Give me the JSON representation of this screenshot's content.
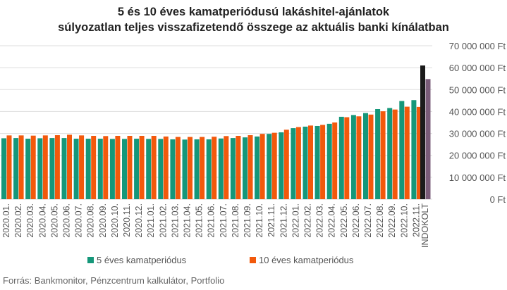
{
  "title": {
    "line1": "5 és 10 éves kamatperiódusú lakáshitel-ajánlatok",
    "line2": "súlyozatlan teljes visszafizetendő összege az aktuális banki kínálatban"
  },
  "source": "Forrás: Bankmonitor, Pénzcentrum kalkulátor, Portfolio",
  "colors": {
    "five": "#15977a",
    "ten": "#f2590c",
    "indokolt_a": "#1b1b1b",
    "indokolt_b": "#7a5c79",
    "grid": "#dddddd"
  },
  "chart_data": {
    "type": "bar",
    "title": "5 és 10 éves kamatperiódusú lakáshitel-ajánlatok súlyozatlan teljes visszafizetendő összege az aktuális banki kínálatban",
    "categories": [
      "2020.01.",
      "2020.02.",
      "2020.03.",
      "2020.04.",
      "2020.05.",
      "2020.06.",
      "2020.07.",
      "2020.08.",
      "2020.09.",
      "2020.10.",
      "2020.11.",
      "2020.12.",
      "2021.01.",
      "2021.02.",
      "2021.03.",
      "2021.04.",
      "2021.05.",
      "2021.06.",
      "2021.07.",
      "2021.08.",
      "2021.09.",
      "2021.10.",
      "2021.11.",
      "2021.12.",
      "2022.01.",
      "2022.02.",
      "2022.03.",
      "2022.04.",
      "2022.05.",
      "2022.06.",
      "2022.07.",
      "2022.08.",
      "2022.09.",
      "2022.10.",
      "2022.11.",
      "INDOKOLT"
    ],
    "tick_labels": [
      "2020.01.",
      "2020.02.",
      "2020.03.",
      "2020.04.",
      "2020.05.",
      "2020.06.",
      "2020.07.",
      "2020.08.",
      "2020.09.",
      "2020.10.",
      "2020.11.",
      "2020.12.",
      "2021.01.",
      "2021.02.",
      "2021.03.",
      "2021.04.",
      "2021.05.",
      "2021.06.",
      "2021.07.",
      "2021.08.",
      "2021.09.",
      "2021.10.",
      "2021.11.",
      "2021.12.",
      "2022.01.",
      "2022.02.",
      "2022.03.",
      "2022.04.",
      "2022.05.",
      "2022.06.",
      "2022.07.",
      "2022.08.",
      "2022.09.",
      "2022.10.",
      "2022.11.",
      "INDOKOLT"
    ],
    "series": [
      {
        "name": "5 éves kamatperiódus",
        "color": "#15977a",
        "values": [
          27.8,
          27.9,
          27.6,
          27.8,
          27.9,
          27.9,
          27.6,
          27.6,
          27.6,
          27.5,
          27.5,
          27.6,
          27.5,
          27.5,
          27.3,
          27.2,
          27.3,
          27.3,
          27.7,
          27.9,
          28.2,
          28.6,
          29.8,
          30.5,
          32.4,
          33.1,
          33.4,
          34.4,
          37.6,
          38.4,
          39.3,
          41.1,
          41.6,
          44.8,
          45.2,
          61.0
        ]
      },
      {
        "name": "10 éves kamatperiódus",
        "color": "#f2590c",
        "values": [
          29.1,
          29.1,
          29.0,
          29.1,
          29.2,
          29.4,
          29.1,
          28.9,
          28.8,
          28.9,
          28.9,
          28.9,
          28.9,
          28.6,
          28.4,
          28.4,
          28.4,
          28.5,
          28.8,
          28.9,
          29.2,
          29.8,
          30.3,
          31.7,
          32.9,
          33.6,
          33.9,
          35.0,
          37.4,
          37.8,
          38.6,
          40.1,
          40.9,
          42.2,
          42.1,
          54.8
        ]
      }
    ],
    "indokolt_colors": [
      "#1b1b1b",
      "#7a5c79"
    ],
    "unit_multiplier": 1000000,
    "y_tick_labels": [
      "0 Ft",
      "10 000 000 Ft",
      "20 000 000 Ft",
      "30 000 000 Ft",
      "40 000 000 Ft",
      "50 000 000 Ft",
      "60 000 000 Ft",
      "70 000 000 Ft"
    ],
    "ylim": [
      0,
      70
    ],
    "grid": true,
    "legend_position": "bottom"
  }
}
